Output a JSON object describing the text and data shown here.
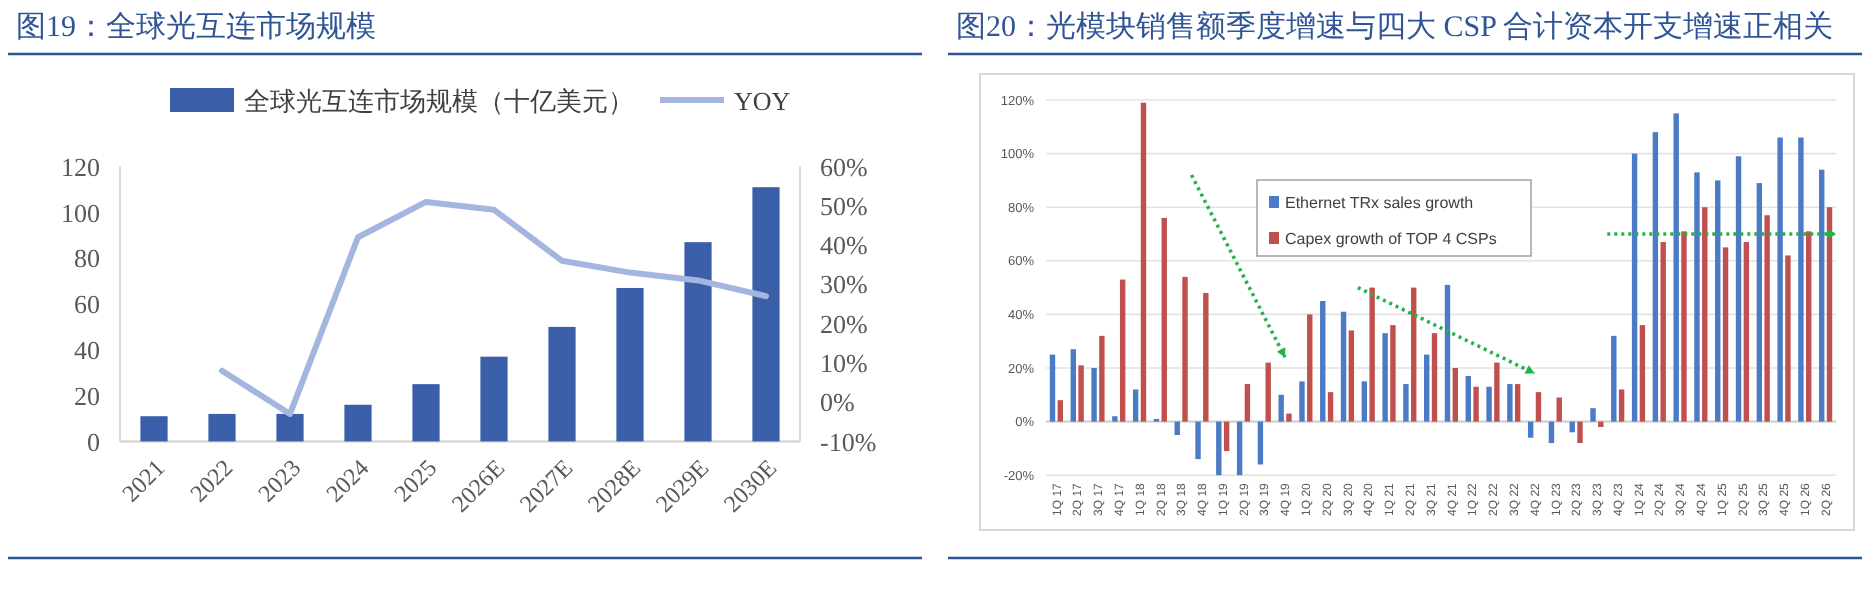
{
  "chart_data": [
    {
      "type": "bar",
      "title": "图19：全球光互连市场规模",
      "categories": [
        "2021",
        "2022",
        "2023",
        "2024",
        "2025",
        "2026E",
        "2027E",
        "2028E",
        "2029E",
        "2030E"
      ],
      "series": [
        {
          "name": "全球光互连市场规模（十亿美元）",
          "color": "#3a5ea8",
          "values": [
            11,
            12,
            12,
            16,
            25,
            37,
            50,
            67,
            87,
            111
          ]
        },
        {
          "name": "YOY",
          "type": "line",
          "axis": "y2",
          "color": "#a4b6e0",
          "values": [
            null,
            8,
            -3,
            42,
            51,
            49,
            36,
            33,
            31,
            27
          ]
        }
      ],
      "ylim": [
        0,
        120
      ],
      "yticks": [
        0,
        20,
        40,
        60,
        80,
        100,
        120
      ],
      "y2lim": [
        -10,
        60
      ],
      "y2ticks": [
        {
          "value": -10,
          "label": "-10%"
        },
        {
          "value": 0,
          "label": "0%"
        },
        {
          "value": 10,
          "label": "10%"
        },
        {
          "value": 20,
          "label": "20%"
        },
        {
          "value": 30,
          "label": "30%"
        },
        {
          "value": 40,
          "label": "40%"
        },
        {
          "value": 50,
          "label": "50%"
        },
        {
          "value": 60,
          "label": "60%"
        }
      ],
      "grid": false,
      "legend": "top"
    },
    {
      "type": "bar",
      "title": "图20：光模块销售额季度增速与四大 CSP 合计资本开支增速正相关",
      "categories": [
        "1Q 17",
        "2Q 17",
        "3Q 17",
        "4Q 17",
        "1Q 18",
        "2Q 18",
        "3Q 18",
        "4Q 18",
        "1Q 19",
        "2Q 19",
        "3Q 19",
        "4Q 19",
        "1Q 20",
        "2Q 20",
        "3Q 20",
        "4Q 20",
        "1Q 21",
        "2Q 21",
        "3Q 21",
        "4Q 21",
        "1Q 22",
        "2Q 22",
        "3Q 22",
        "4Q 22",
        "1Q 23",
        "2Q 23",
        "3Q 23",
        "4Q 23",
        "1Q 24",
        "2Q 24",
        "3Q 24",
        "4Q 24",
        "1Q 25",
        "2Q 25",
        "3Q 25",
        "4Q 25",
        "1Q 26",
        "2Q 26"
      ],
      "series": [
        {
          "name": "Ethernet TRx sales growth",
          "color": "#4a7bc4",
          "values": [
            25,
            27,
            20,
            2,
            12,
            1,
            -5,
            -14,
            -20,
            -20,
            -16,
            10,
            15,
            45,
            41,
            15,
            33,
            14,
            25,
            51,
            17,
            13,
            14,
            -6,
            -8,
            -4,
            5,
            32,
            100,
            108,
            115,
            93,
            90,
            99,
            89,
            106,
            106,
            94
          ]
        },
        {
          "name": "Capex growth of TOP 4 CSPs",
          "color": "#c0504d",
          "values": [
            8,
            21,
            32,
            53,
            119,
            76,
            54,
            48,
            -11,
            14,
            22,
            3,
            40,
            11,
            34,
            50,
            36,
            50,
            33,
            20,
            13,
            22,
            14,
            11,
            9,
            -8,
            -2,
            12,
            36,
            67,
            71,
            80,
            65,
            67,
            77,
            62,
            71,
            80
          ]
        }
      ],
      "ylim": [
        -20,
        120
      ],
      "yticks": [
        {
          "value": -20,
          "label": "-20%"
        },
        {
          "value": 0,
          "label": "0%"
        },
        {
          "value": 20,
          "label": "20%"
        },
        {
          "value": 40,
          "label": "40%"
        },
        {
          "value": 60,
          "label": "60%"
        },
        {
          "value": 80,
          "label": "80%"
        },
        {
          "value": 100,
          "label": "100%"
        },
        {
          "value": 120,
          "label": "120%"
        }
      ],
      "grid": "y",
      "legend": "top"
    }
  ]
}
